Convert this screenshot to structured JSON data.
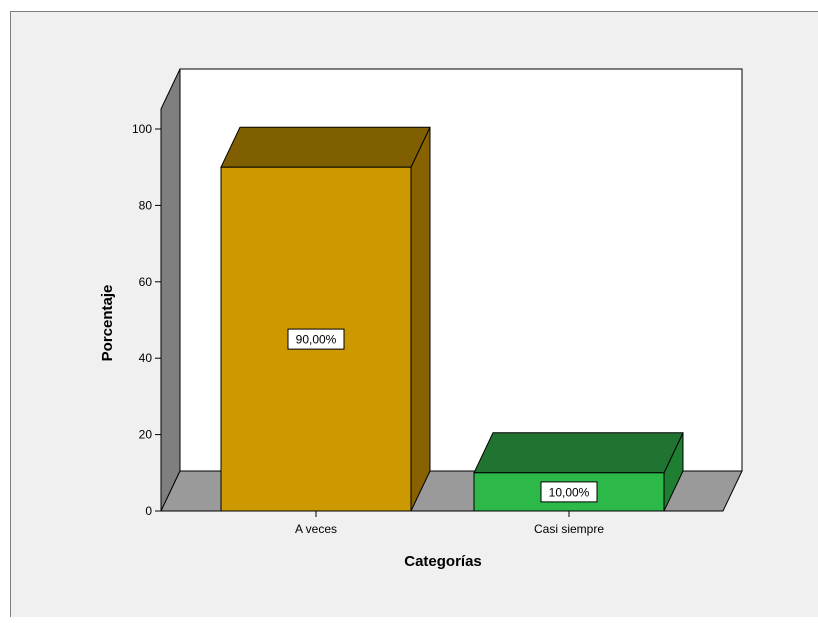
{
  "chart_data": {
    "type": "bar",
    "categories": [
      "A veces",
      "Casi siempre"
    ],
    "values": [
      90,
      10
    ],
    "data_labels": [
      "90,00%",
      "10,00%"
    ],
    "xlabel": "Categorías",
    "ylabel": "Porcentaje",
    "ylim": [
      0,
      100
    ],
    "yticks": [
      "0",
      "20",
      "40",
      "60",
      "80",
      "100"
    ],
    "bar_colors": {
      "A veces": {
        "front": "#cc9900",
        "side": "#886200",
        "top": "#7f5f00"
      },
      "Casi siempre": {
        "front": "#2db84a",
        "side": "#1e7e31",
        "top": "#217332"
      }
    },
    "grid": false,
    "style": "3d"
  }
}
